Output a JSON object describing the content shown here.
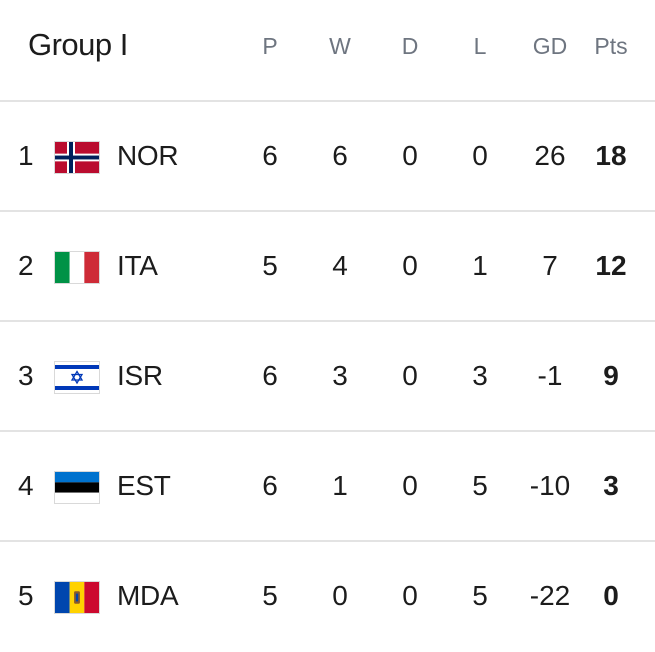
{
  "group": {
    "title": "Group I"
  },
  "columns": {
    "p": "P",
    "w": "W",
    "d": "D",
    "l": "L",
    "gd": "GD",
    "pts": "Pts"
  },
  "rows": [
    {
      "rank": "1",
      "team": "NOR",
      "flag": "norway-flag-icon",
      "p": "6",
      "w": "6",
      "d": "0",
      "l": "0",
      "gd": "26",
      "pts": "18"
    },
    {
      "rank": "2",
      "team": "ITA",
      "flag": "italy-flag-icon",
      "p": "5",
      "w": "4",
      "d": "0",
      "l": "1",
      "gd": "7",
      "pts": "12"
    },
    {
      "rank": "3",
      "team": "ISR",
      "flag": "israel-flag-icon",
      "p": "6",
      "w": "3",
      "d": "0",
      "l": "3",
      "gd": "-1",
      "pts": "9"
    },
    {
      "rank": "4",
      "team": "EST",
      "flag": "estonia-flag-icon",
      "p": "6",
      "w": "1",
      "d": "0",
      "l": "5",
      "gd": "-10",
      "pts": "3"
    },
    {
      "rank": "5",
      "team": "MDA",
      "flag": "moldova-flag-icon",
      "p": "5",
      "w": "0",
      "d": "0",
      "l": "5",
      "gd": "-22",
      "pts": "0"
    }
  ],
  "colors": {
    "header_text": "#6e7580",
    "divider": "#e3e3e3",
    "text": "#1c1c1c"
  }
}
